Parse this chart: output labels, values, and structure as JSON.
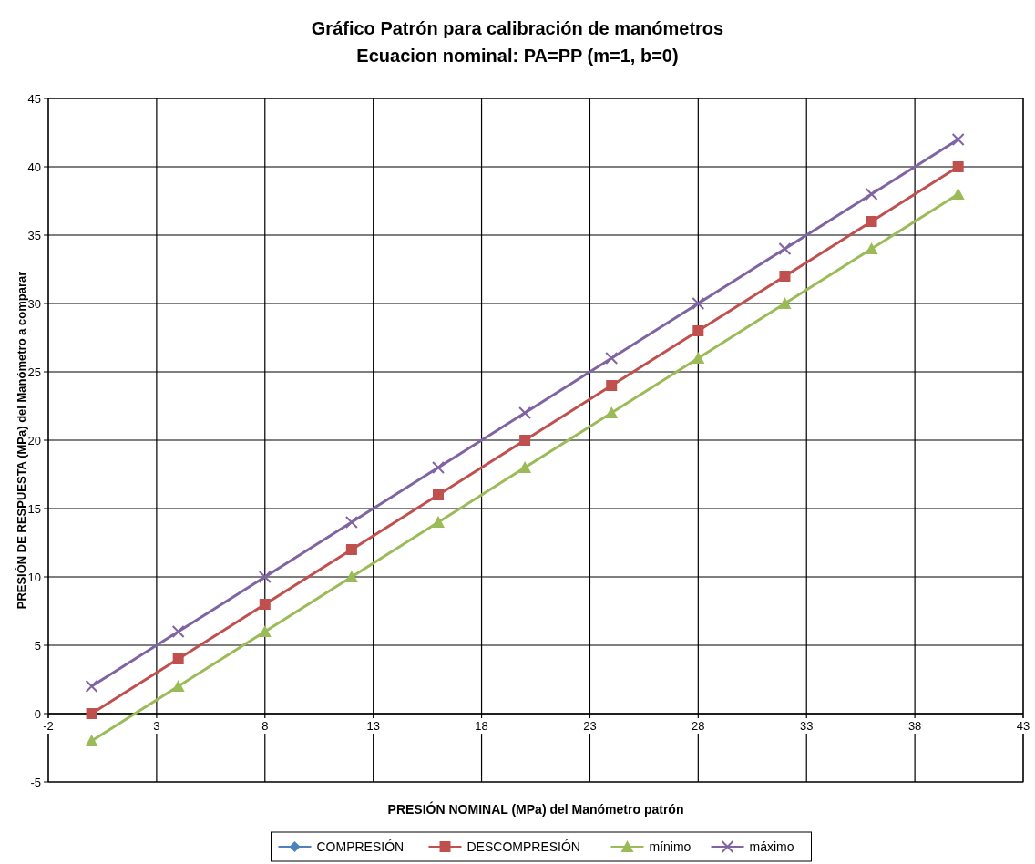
{
  "chart_data": {
    "type": "line",
    "title": "Gráfico Patrón para calibración de manómetros",
    "subtitle": "Ecuacion nominal: PA=PP (m=1, b=0)",
    "xlabel": "PRESIÓN NOMINAL (MPa) del Manómetro patrón",
    "ylabel": "PRESIÓN DE RESPUESTA (MPa) del Manómetro a comparar",
    "x": [
      0,
      4,
      8,
      12,
      16,
      20,
      24,
      28,
      32,
      36,
      40
    ],
    "xlim": [
      -2,
      43
    ],
    "xticks": [
      -2,
      3,
      8,
      13,
      18,
      23,
      28,
      33,
      38,
      43
    ],
    "ylim": [
      -5,
      45
    ],
    "yticks": [
      -5,
      0,
      5,
      10,
      15,
      20,
      25,
      30,
      35,
      40,
      45
    ],
    "grid": true,
    "legend": "bottom",
    "line_style": "solid",
    "series": [
      {
        "name": "COMPRESIÓN",
        "color": "#4f81bd",
        "marker": "diamond",
        "values": [
          null,
          null,
          null,
          null,
          null,
          null,
          null,
          null,
          null,
          null,
          null
        ]
      },
      {
        "name": "DESCOMPRESIÓN",
        "color": "#c0504d",
        "marker": "square",
        "values": [
          0,
          4,
          8,
          12,
          16,
          20,
          24,
          28,
          32,
          36,
          40
        ]
      },
      {
        "name": "mínimo",
        "color": "#9bbb59",
        "marker": "triangle",
        "values": [
          -2,
          2,
          6,
          10,
          14,
          18,
          22,
          26,
          30,
          34,
          38
        ]
      },
      {
        "name": "máximo",
        "color": "#8064a2",
        "marker": "cross",
        "values": [
          2,
          6,
          10,
          14,
          18,
          22,
          26,
          30,
          34,
          38,
          42
        ]
      }
    ]
  }
}
